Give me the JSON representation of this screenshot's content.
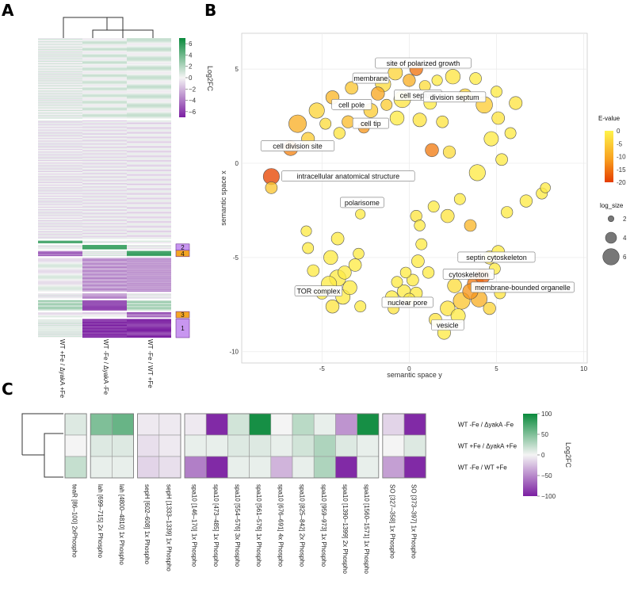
{
  "colors": {
    "green": "#0a8a3c",
    "purple": "#7b1fa2",
    "neutral": "#f4f4f4",
    "cluster_purple": "#c896f0",
    "cluster_orange": "#f5a623",
    "evalue_low": "#e53d00",
    "evalue_high": "#fff34a"
  },
  "panel_labels": {
    "a": "A",
    "b": "B",
    "c": "C"
  },
  "chart_data": [
    {
      "type": "heatmap",
      "panel": "A",
      "columns": [
        "WT +Fe / ΔyakA +Fe",
        "WT -Fe / ΔyakA -Fe",
        "WT -Fe / WT +Fe"
      ],
      "legend_title": "Log2FC",
      "legend_ticks": [
        "6",
        "4",
        "2",
        "0",
        "−2",
        "−4",
        "−6"
      ],
      "legend_range": [
        -7,
        7
      ],
      "cluster_labels": [
        "2",
        "4",
        "3",
        "1"
      ],
      "blocks": [
        {
          "rows": 95,
          "values": [
            0.3,
            0.5,
            0.6
          ]
        },
        {
          "rows": 140,
          "values": [
            -0.4,
            -0.4,
            -0.4
          ]
        },
        {
          "rows": 3,
          "values": [
            5.5,
            0.3,
            0.3
          ]
        },
        {
          "rows": 5,
          "values": [
            0.0,
            5.5,
            0.0
          ],
          "cluster": "2"
        },
        {
          "rows": 6,
          "values": [
            -4.5,
            0.3,
            5.5
          ],
          "cluster": "4"
        },
        {
          "rows": 40,
          "values": [
            0.0,
            -3.0,
            -3.0
          ]
        },
        {
          "rows": 6,
          "values": [
            -0.2,
            -3.5,
            0.0
          ]
        },
        {
          "rows": 12,
          "values": [
            2.0,
            -5.0,
            2.0
          ]
        },
        {
          "rows": 6,
          "values": [
            0.0,
            -0.5,
            -4.5
          ],
          "cluster": "3"
        },
        {
          "rows": 22,
          "values": [
            0.5,
            -6.5,
            -6.5
          ],
          "cluster": "1"
        }
      ]
    },
    {
      "type": "scatter",
      "panel": "B",
      "xlabel": "semantic space y",
      "ylabel": "semantic space x",
      "xlim": [
        -9.6,
        10.2
      ],
      "ylim": [
        -10.6,
        6.9
      ],
      "x_ticks": [
        "-5",
        "0",
        "5",
        "10"
      ],
      "y_ticks": [
        "5",
        "0",
        "-5",
        "-10"
      ],
      "legend_evalue_title": "E-value",
      "legend_evalue_ticks": [
        "0",
        "-5",
        "-10",
        "-15",
        "-20"
      ],
      "legend_size_title": "log_size",
      "legend_size_ticks": [
        "2",
        "4",
        "6"
      ],
      "labels": [
        {
          "text": "site of polarized growth",
          "x": 0.8,
          "y": 5.3
        },
        {
          "text": "membrane",
          "x": -2.2,
          "y": 4.5
        },
        {
          "text": "cell septum",
          "x": 0.5,
          "y": 3.6
        },
        {
          "text": "division septum",
          "x": 2.6,
          "y": 3.5
        },
        {
          "text": "cell pole",
          "x": -3.3,
          "y": 3.1
        },
        {
          "text": "cell tip",
          "x": -2.2,
          "y": 2.1
        },
        {
          "text": "cell division site",
          "x": -6.4,
          "y": 0.9
        },
        {
          "text": "intracellular anatomical structure",
          "x": -3.5,
          "y": -0.7
        },
        {
          "text": "polarisome",
          "x": -2.7,
          "y": -2.1
        },
        {
          "text": "septin cytoskeleton",
          "x": 5.0,
          "y": -5.0
        },
        {
          "text": "cytoskeleton",
          "x": 3.4,
          "y": -5.9
        },
        {
          "text": "membrane-bounded organelle",
          "x": 6.5,
          "y": -6.6
        },
        {
          "text": "TOR complex",
          "x": -5.2,
          "y": -6.8
        },
        {
          "text": "nuclear pore",
          "x": -0.1,
          "y": -7.4
        },
        {
          "text": "vesicle",
          "x": 2.2,
          "y": -8.6
        }
      ],
      "points": [
        {
          "x": -7.9,
          "y": -0.7,
          "e": -21,
          "s": 4.4
        },
        {
          "x": -7.9,
          "y": -1.3,
          "e": -6,
          "s": 3.2
        },
        {
          "x": -6.8,
          "y": 0.8,
          "e": -14,
          "s": 4.0
        },
        {
          "x": -6.4,
          "y": 2.1,
          "e": -9,
          "s": 4.8
        },
        {
          "x": -5.8,
          "y": 1.3,
          "e": -5,
          "s": 3.5
        },
        {
          "x": -5.3,
          "y": 2.8,
          "e": -4,
          "s": 4.2
        },
        {
          "x": -4.8,
          "y": 2.1,
          "e": -3,
          "s": 3.0
        },
        {
          "x": -4.4,
          "y": 3.5,
          "e": -8,
          "s": 3.6
        },
        {
          "x": -4.0,
          "y": 1.6,
          "e": -2,
          "s": 3.1
        },
        {
          "x": -3.5,
          "y": 2.2,
          "e": -7,
          "s": 3.3
        },
        {
          "x": -3.3,
          "y": 4.0,
          "e": -6,
          "s": 3.4
        },
        {
          "x": -2.6,
          "y": 1.9,
          "e": -12,
          "s": 3.0
        },
        {
          "x": -2.2,
          "y": 2.8,
          "e": -5,
          "s": 3.8
        },
        {
          "x": -1.8,
          "y": 3.7,
          "e": -10,
          "s": 3.6
        },
        {
          "x": -1.5,
          "y": 4.2,
          "e": -3,
          "s": 4.2
        },
        {
          "x": -0.8,
          "y": 4.8,
          "e": -4,
          "s": 3.9
        },
        {
          "x": -0.4,
          "y": 3.4,
          "e": -2,
          "s": 4.6
        },
        {
          "x": 0.0,
          "y": 4.4,
          "e": -9,
          "s": 3.3
        },
        {
          "x": 0.4,
          "y": 5.0,
          "e": -16,
          "s": 3.5
        },
        {
          "x": 0.9,
          "y": 4.1,
          "e": -3,
          "s": 3.0
        },
        {
          "x": 1.2,
          "y": 3.2,
          "e": -1,
          "s": 3.4
        },
        {
          "x": 0.6,
          "y": 2.3,
          "e": -2,
          "s": 3.7
        },
        {
          "x": -0.7,
          "y": 2.4,
          "e": -1,
          "s": 3.8
        },
        {
          "x": -1.3,
          "y": 3.1,
          "e": -5,
          "s": 3.0
        },
        {
          "x": 1.6,
          "y": 4.4,
          "e": -1,
          "s": 2.8
        },
        {
          "x": 1.9,
          "y": 2.2,
          "e": -2,
          "s": 3.2
        },
        {
          "x": 2.5,
          "y": 4.6,
          "e": -2,
          "s": 4.0
        },
        {
          "x": 3.2,
          "y": 3.6,
          "e": -4,
          "s": 3.6
        },
        {
          "x": 3.8,
          "y": 4.5,
          "e": -1,
          "s": 3.2
        },
        {
          "x": 4.3,
          "y": 3.1,
          "e": -5,
          "s": 4.5
        },
        {
          "x": 5.0,
          "y": 3.8,
          "e": -1,
          "s": 3.0
        },
        {
          "x": 5.1,
          "y": 2.4,
          "e": -2,
          "s": 3.4
        },
        {
          "x": 4.7,
          "y": 1.3,
          "e": -1,
          "s": 3.9
        },
        {
          "x": 5.8,
          "y": 1.6,
          "e": -1,
          "s": 3.0
        },
        {
          "x": 6.1,
          "y": 3.2,
          "e": -2,
          "s": 3.5
        },
        {
          "x": 5.3,
          "y": 0.2,
          "e": -1,
          "s": 3.2
        },
        {
          "x": 3.9,
          "y": -0.5,
          "e": -1,
          "s": 4.4
        },
        {
          "x": 2.9,
          "y": -1.9,
          "e": -1,
          "s": 3.0
        },
        {
          "x": 2.3,
          "y": 0.6,
          "e": -3,
          "s": 3.3
        },
        {
          "x": 1.3,
          "y": 0.7,
          "e": -15,
          "s": 3.6
        },
        {
          "x": 1.4,
          "y": -2.3,
          "e": -1,
          "s": 3.0
        },
        {
          "x": 2.2,
          "y": -2.8,
          "e": -2,
          "s": 3.6
        },
        {
          "x": 3.5,
          "y": -3.3,
          "e": -8,
          "s": 3.2
        },
        {
          "x": 5.6,
          "y": -2.6,
          "e": -1,
          "s": 3.1
        },
        {
          "x": 6.7,
          "y": -2.0,
          "e": -1,
          "s": 3.3
        },
        {
          "x": 7.6,
          "y": -1.6,
          "e": -1,
          "s": 3.0
        },
        {
          "x": 7.8,
          "y": -1.3,
          "e": -1,
          "s": 2.7
        },
        {
          "x": 4.6,
          "y": -5.0,
          "e": -2,
          "s": 3.6
        },
        {
          "x": 5.1,
          "y": -4.7,
          "e": -1,
          "s": 3.4
        },
        {
          "x": 4.9,
          "y": -5.6,
          "e": -1,
          "s": 3.0
        },
        {
          "x": 3.8,
          "y": -6.4,
          "e": -15,
          "s": 4.5
        },
        {
          "x": 4.2,
          "y": -6.0,
          "e": -18,
          "s": 4.0
        },
        {
          "x": 3.5,
          "y": -6.8,
          "e": -12,
          "s": 4.2
        },
        {
          "x": 3.0,
          "y": -7.3,
          "e": -6,
          "s": 4.6
        },
        {
          "x": 4.0,
          "y": -7.2,
          "e": -9,
          "s": 4.4
        },
        {
          "x": 2.6,
          "y": -6.5,
          "e": -3,
          "s": 3.8
        },
        {
          "x": 2.2,
          "y": -7.7,
          "e": -2,
          "s": 4.0
        },
        {
          "x": 2.8,
          "y": -8.1,
          "e": -1,
          "s": 3.9
        },
        {
          "x": 2.0,
          "y": -9.0,
          "e": -1,
          "s": 3.5
        },
        {
          "x": 1.5,
          "y": -8.3,
          "e": -2,
          "s": 3.4
        },
        {
          "x": 4.6,
          "y": -7.7,
          "e": -4,
          "s": 3.3
        },
        {
          "x": 5.2,
          "y": -6.9,
          "e": -2,
          "s": 3.0
        },
        {
          "x": 1.1,
          "y": -5.8,
          "e": -1,
          "s": 3.1
        },
        {
          "x": 0.5,
          "y": -5.2,
          "e": -1,
          "s": 3.4
        },
        {
          "x": 0.2,
          "y": -6.2,
          "e": -1,
          "s": 3.2
        },
        {
          "x": 0.7,
          "y": -4.3,
          "e": -1,
          "s": 3.0
        },
        {
          "x": 0.6,
          "y": -3.3,
          "e": -1,
          "s": 2.9
        },
        {
          "x": 0.4,
          "y": -2.8,
          "e": -2,
          "s": 3.1
        },
        {
          "x": -0.3,
          "y": -6.8,
          "e": -1,
          "s": 3.6
        },
        {
          "x": -0.7,
          "y": -6.3,
          "e": -1,
          "s": 3.0
        },
        {
          "x": -1.0,
          "y": -7.1,
          "e": -1,
          "s": 3.4
        },
        {
          "x": -0.9,
          "y": -7.7,
          "e": -2,
          "s": 3.0
        },
        {
          "x": 0.0,
          "y": -7.2,
          "e": -1,
          "s": 3.1
        },
        {
          "x": 0.4,
          "y": -6.9,
          "e": -1,
          "s": 3.3
        },
        {
          "x": -0.2,
          "y": -5.8,
          "e": -1,
          "s": 2.9
        },
        {
          "x": -2.8,
          "y": -2.7,
          "e": -1,
          "s": 2.6
        },
        {
          "x": -4.1,
          "y": -4.0,
          "e": -1,
          "s": 3.4
        },
        {
          "x": -4.5,
          "y": -5.0,
          "e": -1,
          "s": 3.8
        },
        {
          "x": -5.5,
          "y": -5.7,
          "e": -1,
          "s": 3.2
        },
        {
          "x": -5.8,
          "y": -4.5,
          "e": -1,
          "s": 3.0
        },
        {
          "x": -4.1,
          "y": -6.1,
          "e": -1,
          "s": 4.5
        },
        {
          "x": -4.6,
          "y": -6.4,
          "e": -1,
          "s": 4.2
        },
        {
          "x": -3.4,
          "y": -6.6,
          "e": -1,
          "s": 3.8
        },
        {
          "x": -3.8,
          "y": -7.1,
          "e": -1,
          "s": 3.9
        },
        {
          "x": -4.4,
          "y": -7.6,
          "e": -2,
          "s": 3.6
        },
        {
          "x": -3.1,
          "y": -5.4,
          "e": -1,
          "s": 3.4
        },
        {
          "x": -2.9,
          "y": -4.8,
          "e": -1,
          "s": 2.9
        },
        {
          "x": -5.0,
          "y": -6.9,
          "e": -1,
          "s": 3.2
        },
        {
          "x": -3.7,
          "y": -5.8,
          "e": -1,
          "s": 3.6
        },
        {
          "x": -5.9,
          "y": -3.6,
          "e": -1,
          "s": 2.8
        },
        {
          "x": -2.8,
          "y": -7.6,
          "e": -1,
          "s": 3.0
        }
      ]
    },
    {
      "type": "heatmap",
      "panel": "C",
      "rows": [
        "WT -Fe / ΔyakA -Fe",
        "WT +Fe / ΔyakA +Fe",
        "WT -Fe / WT +Fe"
      ],
      "columns": [
        "teaR [86–100] 2xPhospho",
        "lah [699–715] 2x Phospho",
        "lah [4800–4810] 1x Phospho",
        "sepH [602–608] 1x Phospho",
        "sepH [1333–1339] 1x Phospho",
        "spa10 [146–170] 1x Phospho",
        "spa10 [473–485] 1x Phospho",
        "spa10 [554–576] 3x Phospho",
        "spa10 [561–576] 1x Phospho",
        "spa10 [676–691] 4x Phospho",
        "spa10 [825–842] 2x Phospho",
        "spa10 [959–973] 1x Phospho",
        "spa10 [1390–1399] 2x Phospho",
        "spa10 [1560–1571] 1x Phospho",
        "SO [327–358] 1x Phospho",
        "SO [373–397] 1x Phospho"
      ],
      "groups": [
        1,
        2,
        2,
        1,
        1,
        4,
        4,
        4,
        4,
        4,
        4,
        4,
        4,
        4,
        1,
        1
      ],
      "values": [
        [
          10,
          50,
          60,
          -5,
          -5,
          -5,
          -95,
          15,
          95,
          0,
          25,
          5,
          -45,
          95,
          -15,
          -95
        ],
        [
          0,
          10,
          10,
          -10,
          -5,
          5,
          5,
          10,
          10,
          5,
          15,
          30,
          10,
          5,
          0,
          10
        ],
        [
          20,
          5,
          5,
          -15,
          -10,
          -55,
          -95,
          5,
          5,
          -30,
          5,
          30,
          -95,
          5,
          -40,
          -95
        ]
      ],
      "legend_title": "Log2FC",
      "legend_ticks": [
        "100",
        "50",
        "0",
        "−50",
        "−100"
      ],
      "legend_range": [
        -100,
        100
      ]
    }
  ]
}
